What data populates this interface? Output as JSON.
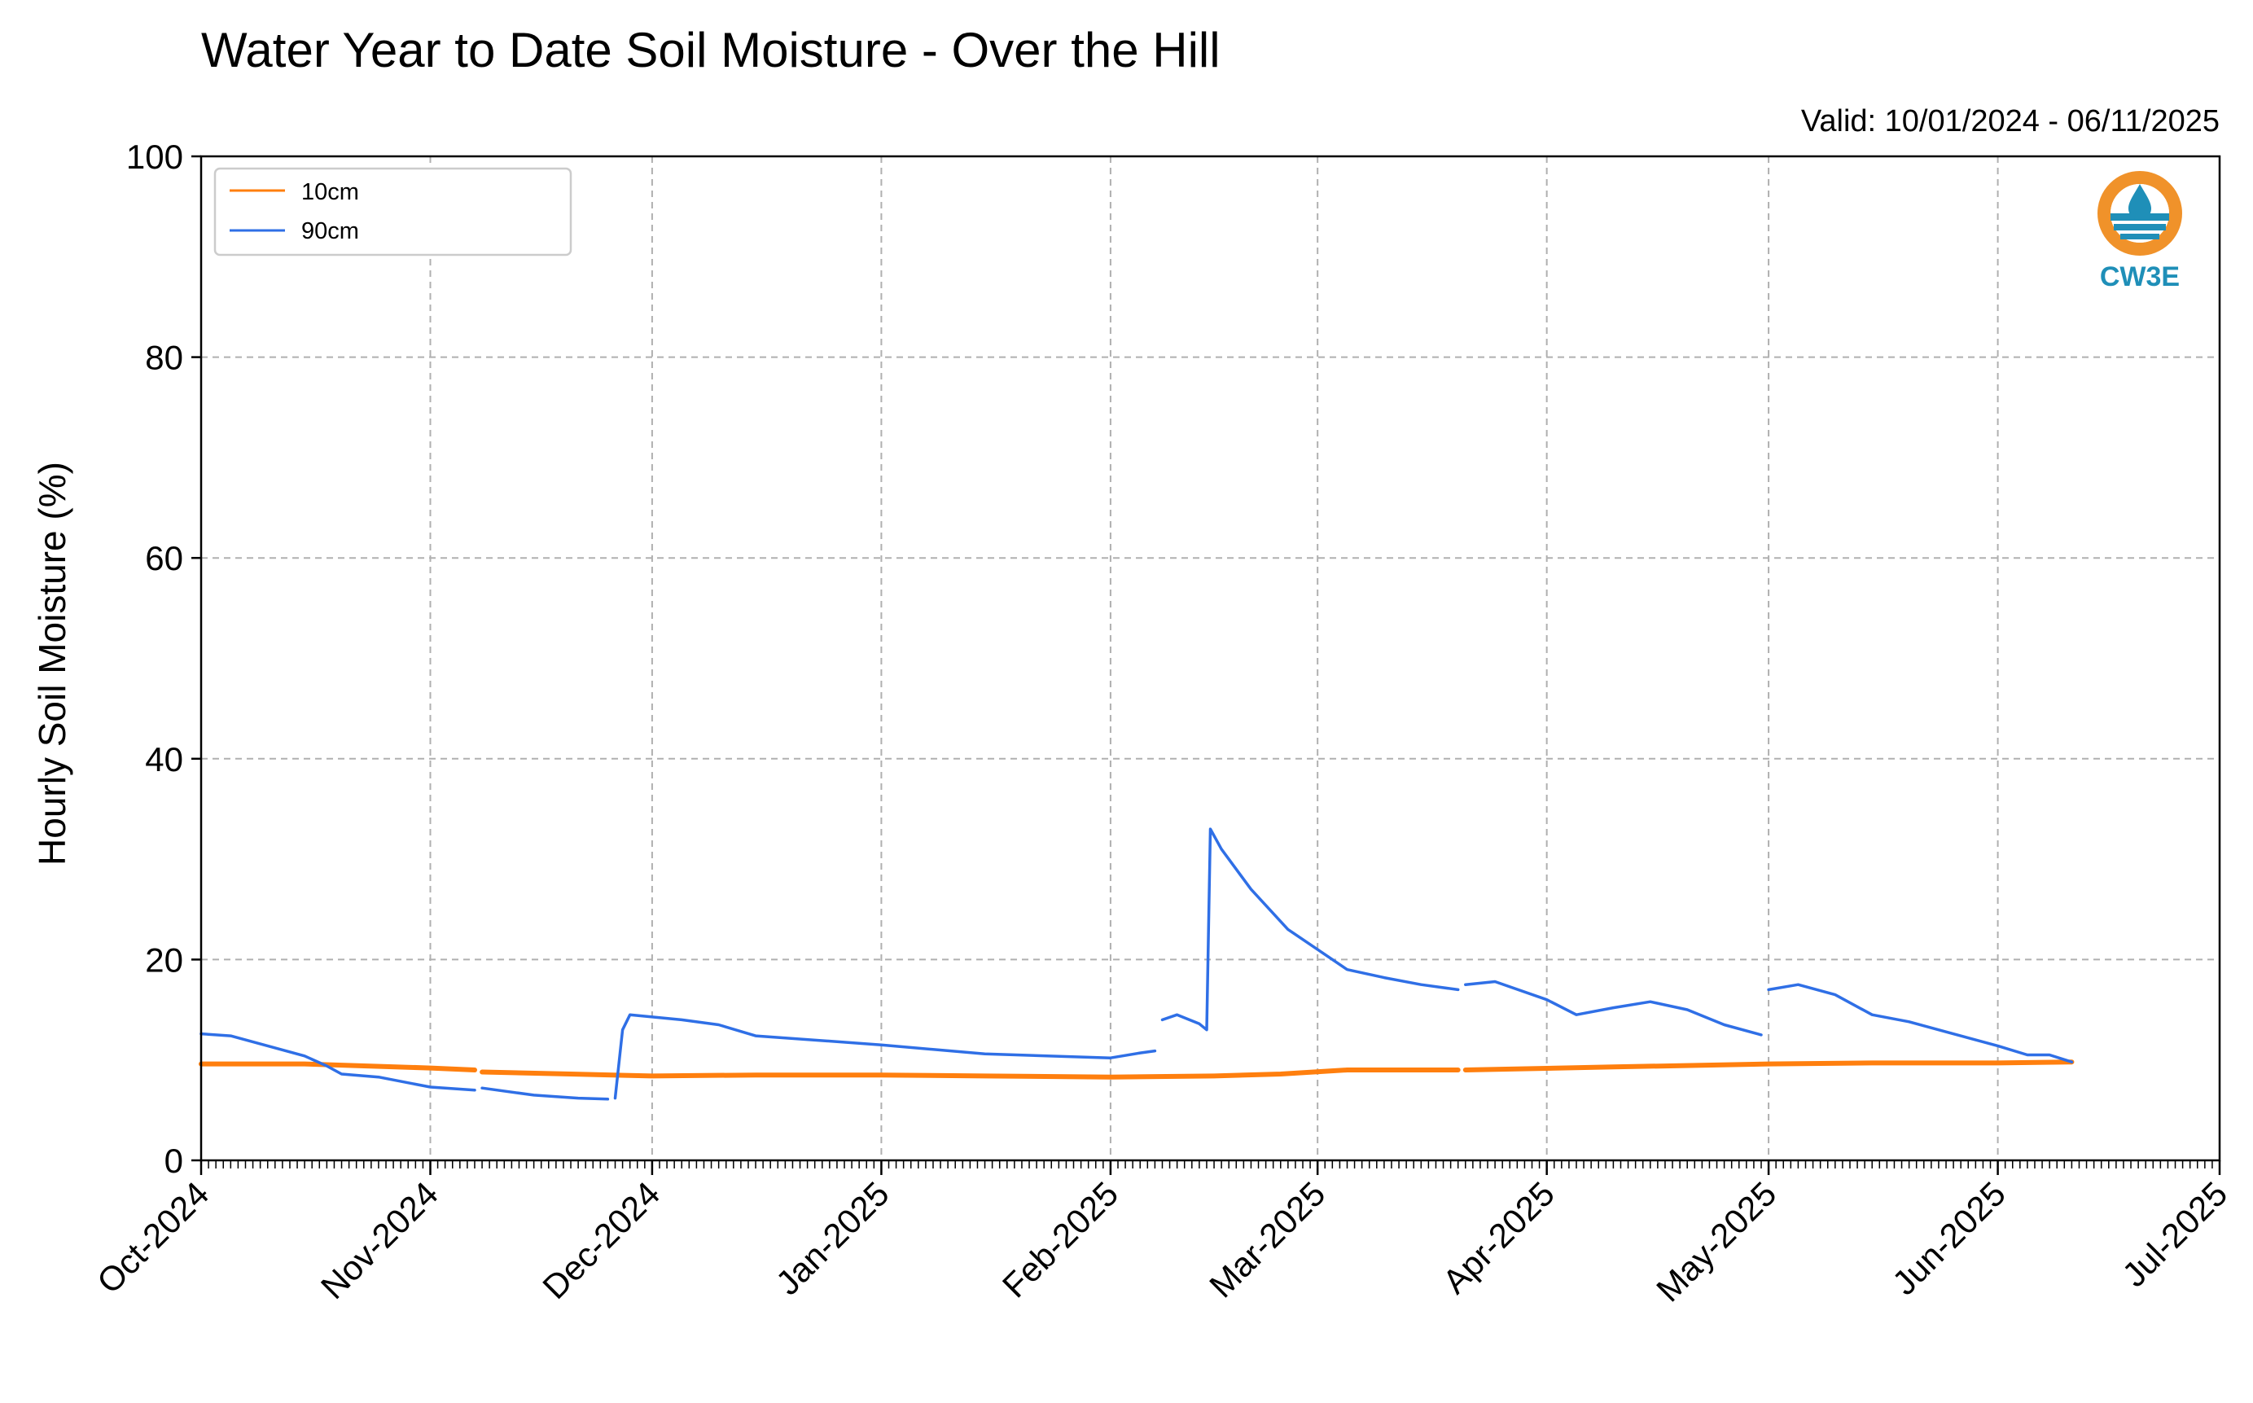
{
  "chart_data": {
    "type": "line",
    "title": "Water Year to Date Soil Moisture - Over the Hill",
    "subtitle": "Valid: 10/01/2024 - 06/11/2025",
    "xlabel": "",
    "ylabel": "Hourly Soil Moisture (%)",
    "ylim": [
      0,
      100
    ],
    "yticks": [
      "0",
      "20",
      "40",
      "60",
      "80",
      "100"
    ],
    "xlim": [
      "2024-10-01",
      "2025-07-01"
    ],
    "xticks": [
      {
        "date": "2024-10-01",
        "label": "Oct-2024"
      },
      {
        "date": "2024-11-01",
        "label": "Nov-2024"
      },
      {
        "date": "2024-12-01",
        "label": "Dec-2024"
      },
      {
        "date": "2025-01-01",
        "label": "Jan-2025"
      },
      {
        "date": "2025-02-01",
        "label": "Feb-2025"
      },
      {
        "date": "2025-03-01",
        "label": "Mar-2025"
      },
      {
        "date": "2025-04-01",
        "label": "Apr-2025"
      },
      {
        "date": "2025-05-01",
        "label": "May-2025"
      },
      {
        "date": "2025-06-01",
        "label": "Jun-2025"
      },
      {
        "date": "2025-07-01",
        "label": "Jul-2025"
      }
    ],
    "grid": true,
    "legend_position": "top-left",
    "series": [
      {
        "name": "10cm",
        "color": "#ff7f0e",
        "segments": [
          [
            [
              "2024-10-01",
              9.6
            ],
            [
              "2024-10-15",
              9.6
            ],
            [
              "2024-11-01",
              9.2
            ],
            [
              "2024-11-07",
              9.0
            ]
          ],
          [
            [
              "2024-11-08",
              8.8
            ],
            [
              "2024-11-20",
              8.6
            ],
            [
              "2024-12-01",
              8.4
            ],
            [
              "2024-12-15",
              8.5
            ],
            [
              "2025-01-01",
              8.5
            ],
            [
              "2025-01-15",
              8.4
            ],
            [
              "2025-02-01",
              8.3
            ],
            [
              "2025-02-15",
              8.4
            ],
            [
              "2025-02-24",
              8.6
            ],
            [
              "2025-03-05",
              9.0
            ],
            [
              "2025-03-20",
              9.0
            ]
          ],
          [
            [
              "2025-03-21",
              9.0
            ],
            [
              "2025-04-10",
              9.3
            ],
            [
              "2025-05-01",
              9.6
            ],
            [
              "2025-05-15",
              9.7
            ],
            [
              "2025-06-01",
              9.7
            ],
            [
              "2025-06-11",
              9.8
            ]
          ]
        ]
      },
      {
        "name": "90cm",
        "color": "#2f6fe6",
        "segments": [
          [
            [
              "2024-10-01",
              12.6
            ],
            [
              "2024-10-05",
              12.4
            ],
            [
              "2024-10-10",
              11.4
            ],
            [
              "2024-10-15",
              10.4
            ],
            [
              "2024-10-18",
              9.4
            ],
            [
              "2024-10-20",
              8.6
            ],
            [
              "2024-10-25",
              8.3
            ],
            [
              "2024-11-01",
              7.3
            ],
            [
              "2024-11-07",
              7.0
            ]
          ],
          [
            [
              "2024-11-08",
              7.2
            ],
            [
              "2024-11-15",
              6.5
            ],
            [
              "2024-11-21",
              6.2
            ],
            [
              "2024-11-25",
              6.1
            ]
          ],
          [
            [
              "2024-11-26",
              6.2
            ],
            [
              "2024-11-27",
              13.0
            ],
            [
              "2024-11-28",
              14.5
            ],
            [
              "2024-12-05",
              14.0
            ],
            [
              "2024-12-10",
              13.5
            ],
            [
              "2024-12-15",
              12.4
            ],
            [
              "2025-01-01",
              11.5
            ],
            [
              "2025-01-15",
              10.6
            ],
            [
              "2025-02-01",
              10.2
            ],
            [
              "2025-02-05",
              10.7
            ],
            [
              "2025-02-07",
              10.9
            ]
          ],
          [
            [
              "2025-02-08",
              14.0
            ],
            [
              "2025-02-10",
              14.5
            ],
            [
              "2025-02-13",
              13.6
            ],
            [
              "2025-02-14",
              13.0
            ],
            [
              "2025-02-14T12",
              33.0
            ],
            [
              "2025-02-16",
              31.0
            ],
            [
              "2025-02-20",
              27.0
            ],
            [
              "2025-02-25",
              23.0
            ],
            [
              "2025-03-01",
              21.0
            ],
            [
              "2025-03-05",
              19.0
            ],
            [
              "2025-03-10",
              18.2
            ],
            [
              "2025-03-15",
              17.5
            ],
            [
              "2025-03-20",
              17.0
            ]
          ],
          [
            [
              "2025-03-21",
              17.5
            ],
            [
              "2025-03-25",
              17.8
            ],
            [
              "2025-04-01",
              16.0
            ],
            [
              "2025-04-05",
              14.5
            ],
            [
              "2025-04-10",
              15.2
            ],
            [
              "2025-04-15",
              15.8
            ],
            [
              "2025-04-20",
              15.0
            ],
            [
              "2025-04-25",
              13.5
            ],
            [
              "2025-04-30",
              12.5
            ]
          ],
          [
            [
              "2025-05-01",
              17.0
            ],
            [
              "2025-05-05",
              17.5
            ],
            [
              "2025-05-10",
              16.5
            ],
            [
              "2025-05-15",
              14.5
            ],
            [
              "2025-05-20",
              13.8
            ],
            [
              "2025-05-25",
              12.8
            ],
            [
              "2025-06-01",
              11.4
            ],
            [
              "2025-06-05",
              10.5
            ],
            [
              "2025-06-08",
              10.5
            ],
            [
              "2025-06-11",
              9.8
            ]
          ]
        ]
      }
    ]
  },
  "logo": {
    "text": "CW3E",
    "ring_color": "#f0922a",
    "water_color": "#1f8fb8"
  }
}
